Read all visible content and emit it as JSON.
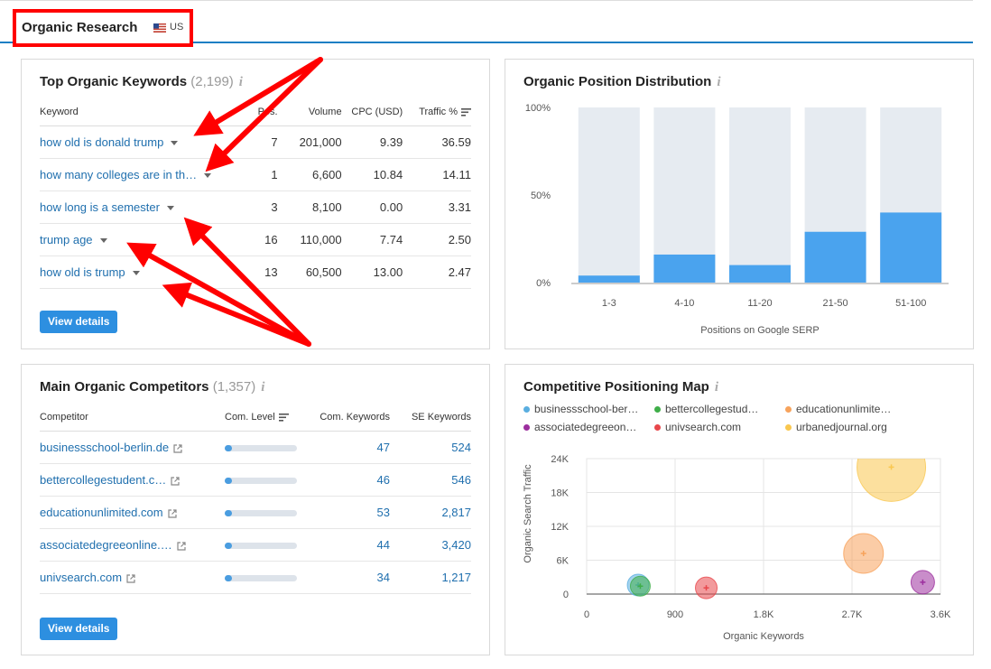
{
  "header": {
    "title": "Organic Research",
    "country": "US"
  },
  "keywords": {
    "title": "Top Organic Keywords",
    "count": "(2,199)",
    "info": "i",
    "columns": {
      "keyword": "Keyword",
      "pos": "Pos.",
      "volume": "Volume",
      "cpc": "CPC (USD)",
      "traffic": "Traffic %"
    },
    "rows": [
      {
        "keyword": "how old is donald trump",
        "pos": "7",
        "volume": "201,000",
        "cpc": "9.39",
        "traffic": "36.59"
      },
      {
        "keyword": "how many colleges are in th…",
        "pos": "1",
        "volume": "6,600",
        "cpc": "10.84",
        "traffic": "14.11"
      },
      {
        "keyword": "how long is a semester",
        "pos": "3",
        "volume": "8,100",
        "cpc": "0.00",
        "traffic": "3.31"
      },
      {
        "keyword": "trump age",
        "pos": "16",
        "volume": "110,000",
        "cpc": "7.74",
        "traffic": "2.50"
      },
      {
        "keyword": "how old is trump",
        "pos": "13",
        "volume": "60,500",
        "cpc": "13.00",
        "traffic": "2.47"
      }
    ],
    "button": "View details"
  },
  "competitors": {
    "title": "Main Organic Competitors",
    "count": "(1,357)",
    "info": "i",
    "columns": {
      "competitor": "Competitor",
      "level": "Com. Level",
      "com_keywords": "Com. Keywords",
      "se_keywords": "SE Keywords"
    },
    "rows": [
      {
        "domain": "businessschool-berlin.de",
        "level": 0.08,
        "com_keywords": "47",
        "se_keywords": "524"
      },
      {
        "domain": "bettercollegestudent.c…",
        "level": 0.08,
        "com_keywords": "46",
        "se_keywords": "546"
      },
      {
        "domain": "educationunlimited.com",
        "level": 0.08,
        "com_keywords": "53",
        "se_keywords": "2,817"
      },
      {
        "domain": "associatedegreeonline.…",
        "level": 0.08,
        "com_keywords": "44",
        "se_keywords": "3,420"
      },
      {
        "domain": "univsearch.com",
        "level": 0.08,
        "com_keywords": "34",
        "se_keywords": "1,217"
      }
    ],
    "button": "View details"
  },
  "position_chart": {
    "title": "Organic Position Distribution",
    "info": "i",
    "chart_data": {
      "type": "bar",
      "categories": [
        "1-3",
        "4-10",
        "11-20",
        "21-50",
        "51-100"
      ],
      "values": [
        4,
        16,
        10,
        29,
        40
      ],
      "ylim": [
        0,
        100
      ],
      "yticks": [
        "0%",
        "50%",
        "100%"
      ],
      "xlabel": "Positions on Google SERP",
      "bar_color": "#4aa3ee",
      "background_color": "#e6ebf1"
    }
  },
  "map_chart": {
    "title": "Competitive Positioning Map",
    "info": "i",
    "chart_data": {
      "type": "scatter",
      "xlabel": "Organic Keywords",
      "ylabel": "Organic Search Traffic",
      "xticks": [
        "0",
        "900",
        "1.8K",
        "2.7K",
        "3.6K"
      ],
      "yticks": [
        "0",
        "6K",
        "12K",
        "18K",
        "24K"
      ],
      "xlim": [
        0,
        3600
      ],
      "ylim": [
        0,
        24000
      ],
      "series": [
        {
          "name": "businessschool-ber…",
          "x": 524,
          "y": 1600,
          "r": 12,
          "color": "#5aaee0"
        },
        {
          "name": "bettercollegestud…",
          "x": 546,
          "y": 1400,
          "r": 11,
          "color": "#3fae49"
        },
        {
          "name": "educationunlimite…",
          "x": 2817,
          "y": 7200,
          "r": 22,
          "color": "#f7a35c"
        },
        {
          "name": "associatedegreeon…",
          "x": 3420,
          "y": 2100,
          "r": 13,
          "color": "#9c2f9e"
        },
        {
          "name": "univsearch.com",
          "x": 1217,
          "y": 1100,
          "r": 12,
          "color": "#e8474b"
        },
        {
          "name": "urbanedjournal.org",
          "x": 3100,
          "y": 22500,
          "r": 38,
          "color": "#f9c74f"
        }
      ]
    }
  }
}
